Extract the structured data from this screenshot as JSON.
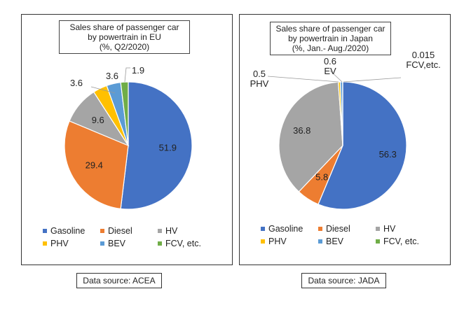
{
  "colors": {
    "Gasoline": "#4472C4",
    "Diesel": "#ED7D31",
    "HV": "#A5A5A5",
    "PHV": "#FFC000",
    "BEV": "#5B9BD5",
    "FCV, etc.": "#70AD47"
  },
  "chart_data": [
    {
      "type": "pie",
      "title": [
        "Sales share of passenger car",
        "by powertrain in EU",
        "(%, Q2/2020)"
      ],
      "categories": [
        "Gasoline",
        "Diesel",
        "HV",
        "PHV",
        "BEV",
        "FCV, etc."
      ],
      "values": [
        51.9,
        29.4,
        9.6,
        3.6,
        3.6,
        1.9
      ],
      "data_labels": [
        "51.9",
        "29.4",
        "9.6",
        "3.6",
        "3.6",
        "1.9"
      ],
      "legend_position": "bottom",
      "source": "Data source: ACEA"
    },
    {
      "type": "pie",
      "title": [
        "Sales share of passenger car",
        "by powertrain in Japan",
        "(%, Jan.- Aug./2020)"
      ],
      "categories": [
        "Gasoline",
        "Diesel",
        "HV",
        "PHV",
        "BEV",
        "FCV, etc."
      ],
      "values": [
        56.3,
        5.8,
        36.8,
        0.5,
        0.6,
        0.015
      ],
      "data_labels": [
        "56.3",
        "5.8",
        "36.8",
        "0.5\nPHV",
        "0.6\nEV",
        "0.015\nFCV,etc."
      ],
      "legend_position": "bottom",
      "source": "Data source: JADA"
    }
  ]
}
